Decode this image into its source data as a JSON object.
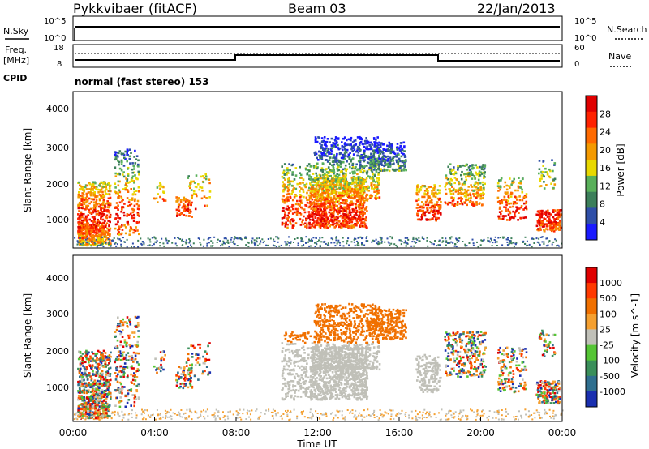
{
  "header": {
    "station": "Pykkvibaer (fitACF)",
    "beam": "Beam 03",
    "date": "22/Jan/2013",
    "cpid": "normal (fast stereo) 153"
  },
  "strip_labels": {
    "nsky": "N.Sky",
    "nsearch": "N.Search",
    "freq": "Freq.",
    "freq_unit": "[MHz]",
    "nave": "Nave",
    "cpid": "CPID",
    "noise_top_left": "10^5",
    "noise_bottom_left": "10^0",
    "noise_top_right": "10^5",
    "noise_bottom_right": "10^0",
    "freq_top": "18",
    "freq_bottom": "8",
    "nave_top": "60",
    "nave_bottom": "0"
  },
  "chart_data": [
    {
      "type": "heatmap",
      "panel": "power",
      "ylabel": "Slant Range [km]",
      "ylim": [
        200,
        4600
      ],
      "yticks": [
        "4000",
        "3000",
        "2000",
        "1000"
      ],
      "xlim": [
        0,
        24
      ],
      "colorbar_label": "Power [dB]",
      "colorbar_ticks": [
        "28",
        "24",
        "20",
        "16",
        "12",
        "8",
        "4"
      ],
      "colors": [
        "#1a1aff",
        "#2f4fa8",
        "#3c7f5a",
        "#59b05a",
        "#e8d800",
        "#f49a00",
        "#ff6a00",
        "#ff2200",
        "#e00000"
      ]
    },
    {
      "type": "heatmap",
      "panel": "velocity",
      "ylabel": "Slant Range [km]",
      "ylim": [
        200,
        4600
      ],
      "yticks": [
        "4000",
        "3000",
        "2000",
        "1000"
      ],
      "xlim": [
        0,
        24
      ],
      "xlabel": "Time UT",
      "xticks": [
        "00:00",
        "04:00",
        "08:00",
        "12:00",
        "16:00",
        "20:00",
        "00:00"
      ],
      "colorbar_label": "Velocity [m s^-1]",
      "colorbar_ticks": [
        "1000",
        "500",
        "100",
        "25",
        "-25",
        "-100",
        "-500",
        "-1000"
      ],
      "colors": [
        "#1a2fb0",
        "#2f6f8f",
        "#3a8f5a",
        "#55c535",
        "#c0c0b8",
        "#f5a030",
        "#f07000",
        "#ff3a00",
        "#e00000"
      ]
    }
  ]
}
